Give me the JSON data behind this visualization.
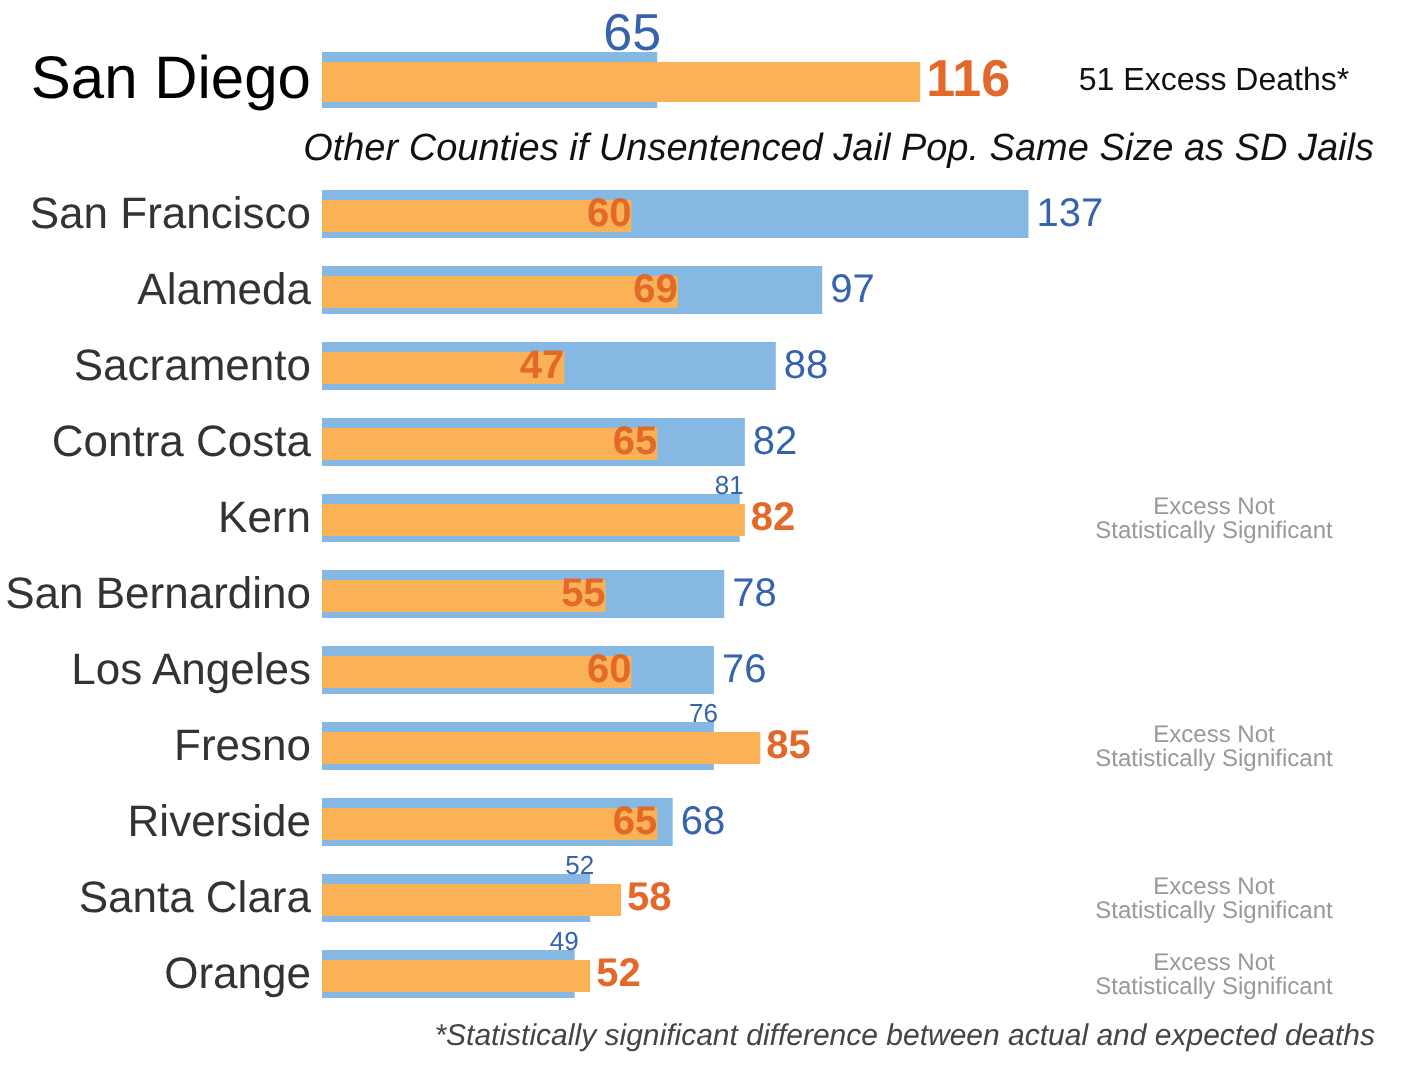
{
  "chart_data": [
    {
      "type": "bar",
      "orientation": "horizontal",
      "categories": [
        "San Diego"
      ],
      "xlim": [
        0,
        204
      ],
      "data_labels": true,
      "series": [
        {
          "color": "#85b8e3",
          "values": [
            65
          ]
        },
        {
          "color": "#fbb256",
          "values": [
            116
          ]
        }
      ],
      "y2_categories": [
        "51 Excess Deaths*"
      ]
    },
    {
      "type": "bar",
      "orientation": "horizontal",
      "title": "Other Counties if Unsentenced Jail Pop. Same Size as SD Jails",
      "categories": [
        "San Francisco",
        "Alameda",
        "Sacramento",
        "Contra Costa",
        "Kern",
        "San Bernardino",
        "Los Angeles",
        "Fresno",
        "Riverside",
        "Santa Clara",
        "Orange"
      ],
      "xlim": [
        0,
        204
      ],
      "data_labels": true,
      "series": [
        {
          "color": "#85b8e3",
          "values": [
            137,
            97,
            88,
            82,
            81,
            78,
            76,
            76,
            68,
            52,
            49
          ]
        },
        {
          "color": "#fbb256",
          "values": [
            60,
            69,
            47,
            65,
            82,
            55,
            60,
            85,
            65,
            58,
            52
          ]
        }
      ],
      "y2_categories": [
        null,
        null,
        null,
        null,
        "Excess Not\nStatistically Significant",
        null,
        null,
        "Excess Not\nStatistically Significant",
        null,
        "Excess Not\nStatistically Significant",
        "Excess Not\nStatistically Significant"
      ],
      "annotations": [
        "*Statistically significant difference between actual and expected deaths"
      ]
    }
  ]
}
